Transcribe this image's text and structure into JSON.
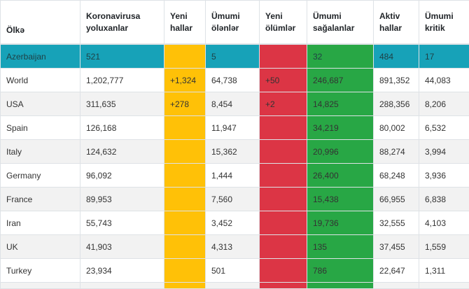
{
  "table": {
    "headers": {
      "country": "Ölkə",
      "total_cases": "Koronavirusa yoluxanlar",
      "new_cases": "Yeni hallar",
      "total_deaths": "Ümumi ölənlər",
      "new_deaths": "Yeni ölümlər",
      "recovered": "Ümumi sağalanlar",
      "active": "Aktiv hallar",
      "critical": "Ümumi kritik"
    },
    "rows": [
      {
        "country": "Azerbaijan",
        "total_cases": "521",
        "new_cases": "",
        "total_deaths": "5",
        "new_deaths": "",
        "recovered": "32",
        "active": "484",
        "critical": "17"
      },
      {
        "country": "World",
        "total_cases": "1,202,777",
        "new_cases": "+1,324",
        "total_deaths": "64,738",
        "new_deaths": "+50",
        "recovered": "246,687",
        "active": "891,352",
        "critical": "44,083"
      },
      {
        "country": "USA",
        "total_cases": "311,635",
        "new_cases": "+278",
        "total_deaths": "8,454",
        "new_deaths": "+2",
        "recovered": "14,825",
        "active": "288,356",
        "critical": "8,206"
      },
      {
        "country": "Spain",
        "total_cases": "126,168",
        "new_cases": "",
        "total_deaths": "11,947",
        "new_deaths": "",
        "recovered": "34,219",
        "active": "80,002",
        "critical": "6,532"
      },
      {
        "country": "Italy",
        "total_cases": "124,632",
        "new_cases": "",
        "total_deaths": "15,362",
        "new_deaths": "",
        "recovered": "20,996",
        "active": "88,274",
        "critical": "3,994"
      },
      {
        "country": "Germany",
        "total_cases": "96,092",
        "new_cases": "",
        "total_deaths": "1,444",
        "new_deaths": "",
        "recovered": "26,400",
        "active": "68,248",
        "critical": "3,936"
      },
      {
        "country": "France",
        "total_cases": "89,953",
        "new_cases": "",
        "total_deaths": "7,560",
        "new_deaths": "",
        "recovered": "15,438",
        "active": "66,955",
        "critical": "6,838"
      },
      {
        "country": "Iran",
        "total_cases": "55,743",
        "new_cases": "",
        "total_deaths": "3,452",
        "new_deaths": "",
        "recovered": "19,736",
        "active": "32,555",
        "critical": "4,103"
      },
      {
        "country": "UK",
        "total_cases": "41,903",
        "new_cases": "",
        "total_deaths": "4,313",
        "new_deaths": "",
        "recovered": "135",
        "active": "37,455",
        "critical": "1,559"
      },
      {
        "country": "Turkey",
        "total_cases": "23,934",
        "new_cases": "",
        "total_deaths": "501",
        "new_deaths": "",
        "recovered": "786",
        "active": "22,647",
        "critical": "1,311"
      }
    ]
  },
  "colors": {
    "highlight_row": "#17a2b8",
    "new_cases": "#ffc107",
    "new_deaths": "#dc3545",
    "recovered": "#28a745"
  }
}
